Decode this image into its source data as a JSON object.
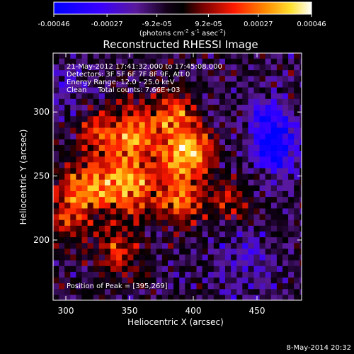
{
  "chart_data": {
    "type": "heatmap",
    "title": "Reconstructed RHESSI Image",
    "xlabel": "Heliocentric X (arcsec)",
    "ylabel": "Heliocentric Y (arcsec)",
    "xlim": [
      290,
      485
    ],
    "ylim": [
      153,
      346
    ],
    "x_ticks": [
      300,
      350,
      400,
      450
    ],
    "y_ticks": [
      200,
      250,
      300
    ],
    "colorbar": {
      "range": [
        -0.00046,
        0.00046
      ],
      "tick_values": [
        -0.00046,
        -0.00027,
        -9.2e-05,
        9.2e-05,
        0.00027,
        0.00046
      ],
      "tick_labels": [
        "-0.00046",
        "-0.00027",
        "-9.2e-05",
        "9.2e-05",
        "0.00027",
        "0.00046"
      ],
      "unit_text": "(photons cm",
      "unit_sup1": "-2",
      "unit_mid": " s",
      "unit_sup2": "-1",
      "unit_mid2": " asec",
      "unit_sup3": "-2",
      "unit_end": ")",
      "colors": [
        "#0000ff",
        "#7f00ff",
        "#000000",
        "#7f0000",
        "#ff0000",
        "#ff9900",
        "#ffff40",
        "#ffffff"
      ]
    },
    "annotations": {
      "time": "21-May-2012 17:41:32.000 to 17:45:08.000",
      "detectors": "Detectors: 3F 5F 6F 7F 8F 9F, Att 0",
      "energy": "Energy Range: 12.0 - 25.0 keV",
      "clean": "Clean     Total counts: 7.66E+03",
      "peak": "Position of Peak = [395,269]"
    },
    "peak": {
      "x": 395,
      "y": 269
    },
    "blobs": [
      {
        "x": 395,
        "y": 269,
        "amp": 0.00046,
        "sigma": 14
      },
      {
        "x": 345,
        "y": 245,
        "amp": 0.0004,
        "sigma": 18
      },
      {
        "x": 355,
        "y": 285,
        "amp": 0.00032,
        "sigma": 14
      },
      {
        "x": 310,
        "y": 240,
        "amp": 0.00028,
        "sigma": 14
      },
      {
        "x": 390,
        "y": 232,
        "amp": 0.0003,
        "sigma": 14
      },
      {
        "x": 385,
        "y": 300,
        "amp": 0.00026,
        "sigma": 12
      },
      {
        "x": 325,
        "y": 285,
        "amp": 0.00022,
        "sigma": 12
      },
      {
        "x": 300,
        "y": 215,
        "amp": 0.0002,
        "sigma": 11
      },
      {
        "x": 340,
        "y": 190,
        "amp": 0.00022,
        "sigma": 13
      },
      {
        "x": 430,
        "y": 230,
        "amp": 0.00015,
        "sigma": 12
      },
      {
        "x": 465,
        "y": 270,
        "amp": -0.00035,
        "sigma": 13
      },
      {
        "x": 460,
        "y": 295,
        "amp": -0.00025,
        "sigma": 12
      },
      {
        "x": 440,
        "y": 180,
        "amp": -0.00012,
        "sigma": 18
      },
      {
        "x": 300,
        "y": 320,
        "amp": -0.00012,
        "sigma": 15
      }
    ],
    "date_stamp": "8-May-2014 20:32"
  }
}
